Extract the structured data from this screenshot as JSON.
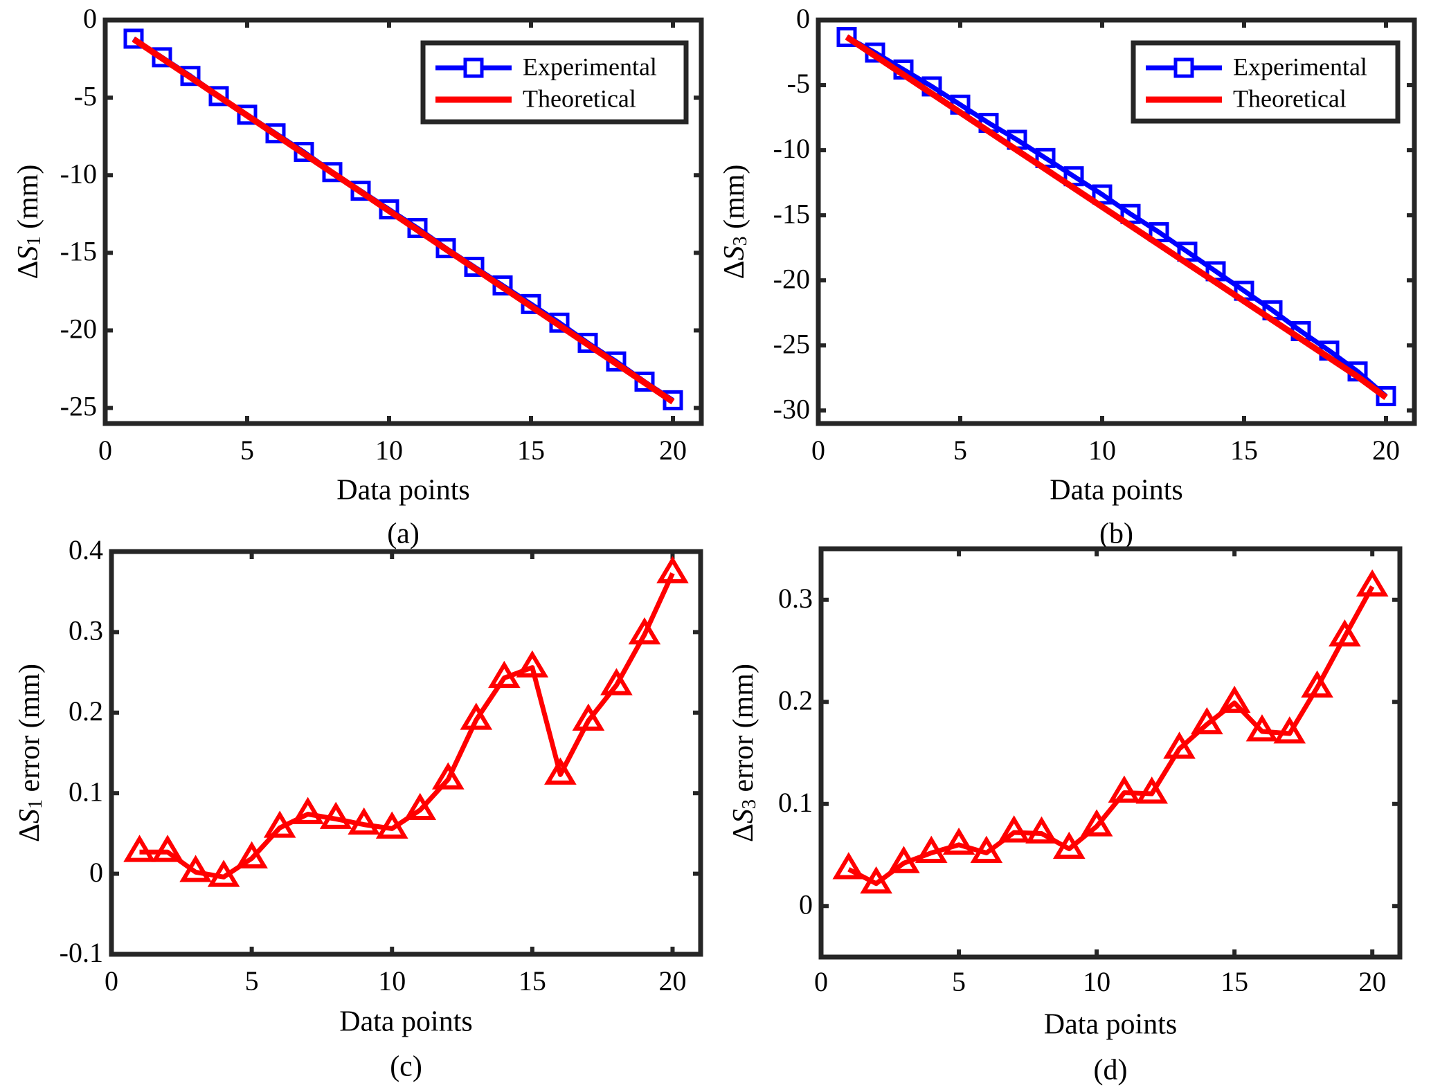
{
  "figure": {
    "panels": [
      "(a)",
      "(b)",
      "(c)",
      "(d)"
    ]
  },
  "chart_data": [
    {
      "id": "a",
      "type": "line",
      "panel_label": "(a)",
      "title": "",
      "xlabel": "Data points",
      "ylabel_prefix": "ΔS",
      "ylabel_sub": "1",
      "ylabel_suffix": " (mm)",
      "xlim": [
        0,
        21
      ],
      "ylim": [
        -26,
        0
      ],
      "xticks": [
        0,
        5,
        10,
        15,
        20
      ],
      "yticks": [
        0,
        -5,
        -10,
        -15,
        -20,
        -25
      ],
      "grid": false,
      "legend": {
        "position": "top-right",
        "entries": [
          "Experimental",
          "Theoretical"
        ]
      },
      "x": [
        1,
        2,
        3,
        4,
        5,
        6,
        7,
        8,
        9,
        10,
        11,
        12,
        13,
        14,
        15,
        16,
        17,
        18,
        19,
        20
      ],
      "series": [
        {
          "name": "Experimental",
          "color": "#0000ff",
          "marker": "square",
          "values": [
            -1.2,
            -2.4,
            -3.6,
            -4.9,
            -6.1,
            -7.3,
            -8.5,
            -9.8,
            -11.0,
            -12.2,
            -13.4,
            -14.7,
            -15.9,
            -17.1,
            -18.3,
            -19.5,
            -20.8,
            -22.0,
            -23.3,
            -24.5
          ]
        },
        {
          "name": "Theoretical",
          "color": "#ff0000",
          "marker": "none",
          "values": [
            -1.23,
            -2.46,
            -3.69,
            -4.92,
            -6.15,
            -7.38,
            -8.61,
            -9.84,
            -11.07,
            -12.3,
            -13.53,
            -14.76,
            -15.99,
            -17.22,
            -18.45,
            -19.68,
            -20.91,
            -22.14,
            -23.37,
            -24.6
          ]
        }
      ]
    },
    {
      "id": "b",
      "type": "line",
      "panel_label": "(b)",
      "title": "",
      "xlabel": "Data points",
      "ylabel_prefix": "ΔS",
      "ylabel_sub": "3",
      "ylabel_suffix": " (mm)",
      "xlim": [
        0,
        21
      ],
      "ylim": [
        -31,
        0
      ],
      "xticks": [
        0,
        5,
        10,
        15,
        20
      ],
      "yticks": [
        0,
        -5,
        -10,
        -15,
        -20,
        -25,
        -30
      ],
      "grid": false,
      "legend": {
        "position": "top-right",
        "entries": [
          "Experimental",
          "Theoretical"
        ]
      },
      "x": [
        1,
        2,
        3,
        4,
        5,
        6,
        7,
        8,
        9,
        10,
        11,
        12,
        13,
        14,
        15,
        16,
        17,
        18,
        19,
        20
      ],
      "series": [
        {
          "name": "Experimental",
          "color": "#0000ff",
          "marker": "square",
          "values": [
            -1.3,
            -2.5,
            -3.8,
            -5.1,
            -6.5,
            -7.9,
            -9.2,
            -10.6,
            -12.0,
            -13.4,
            -14.9,
            -16.3,
            -17.8,
            -19.3,
            -20.8,
            -22.3,
            -23.9,
            -25.4,
            -27.0,
            -28.9
          ]
        },
        {
          "name": "Theoretical",
          "color": "#ff0000",
          "marker": "none",
          "values": [
            -1.3,
            -2.75,
            -4.2,
            -5.65,
            -7.1,
            -8.55,
            -10.0,
            -11.45,
            -12.9,
            -14.35,
            -15.8,
            -17.25,
            -18.7,
            -20.15,
            -21.6,
            -23.05,
            -24.5,
            -25.95,
            -27.4,
            -29.0
          ]
        }
      ]
    },
    {
      "id": "c",
      "type": "line",
      "panel_label": "(c)",
      "title": "",
      "xlabel": "Data points",
      "ylabel_prefix": "ΔS",
      "ylabel_sub": "1",
      "ylabel_suffix": " error (mm)",
      "xlim": [
        0,
        21
      ],
      "ylim": [
        -0.1,
        0.4
      ],
      "xticks": [
        0,
        5,
        10,
        15,
        20
      ],
      "yticks": [
        0.4,
        0.3,
        0.2,
        0.1,
        0,
        -0.1
      ],
      "grid": false,
      "legend": null,
      "x": [
        1,
        2,
        3,
        4,
        5,
        6,
        7,
        8,
        9,
        10,
        11,
        12,
        13,
        14,
        15,
        16,
        17,
        18,
        19,
        20
      ],
      "series": [
        {
          "name": "ΔS1 error",
          "color": "#ff0000",
          "marker": "triangle",
          "values": [
            0.027,
            0.027,
            0.002,
            -0.004,
            0.019,
            0.057,
            0.074,
            0.068,
            0.061,
            0.056,
            0.079,
            0.117,
            0.191,
            0.243,
            0.256,
            0.123,
            0.19,
            0.234,
            0.297,
            0.373
          ]
        }
      ]
    },
    {
      "id": "d",
      "type": "line",
      "panel_label": "(d)",
      "title": "",
      "xlabel": "Data points",
      "ylabel_prefix": "ΔS",
      "ylabel_sub": "3",
      "ylabel_suffix": " error (mm)",
      "xlim": [
        0,
        21
      ],
      "ylim": [
        -0.05,
        0.35
      ],
      "xticks": [
        0,
        5,
        10,
        15,
        20
      ],
      "yticks": [
        0.3,
        0.2,
        0.1,
        0
      ],
      "grid": false,
      "legend": null,
      "x": [
        1,
        2,
        3,
        4,
        5,
        6,
        7,
        8,
        9,
        10,
        11,
        12,
        13,
        14,
        15,
        16,
        17,
        18,
        19,
        20
      ],
      "series": [
        {
          "name": "ΔS3 error",
          "color": "#ff0000",
          "marker": "triangle",
          "values": [
            0.036,
            0.022,
            0.042,
            0.052,
            0.06,
            0.052,
            0.072,
            0.071,
            0.056,
            0.078,
            0.111,
            0.11,
            0.154,
            0.178,
            0.199,
            0.171,
            0.169,
            0.214,
            0.264,
            0.313
          ]
        }
      ]
    }
  ]
}
